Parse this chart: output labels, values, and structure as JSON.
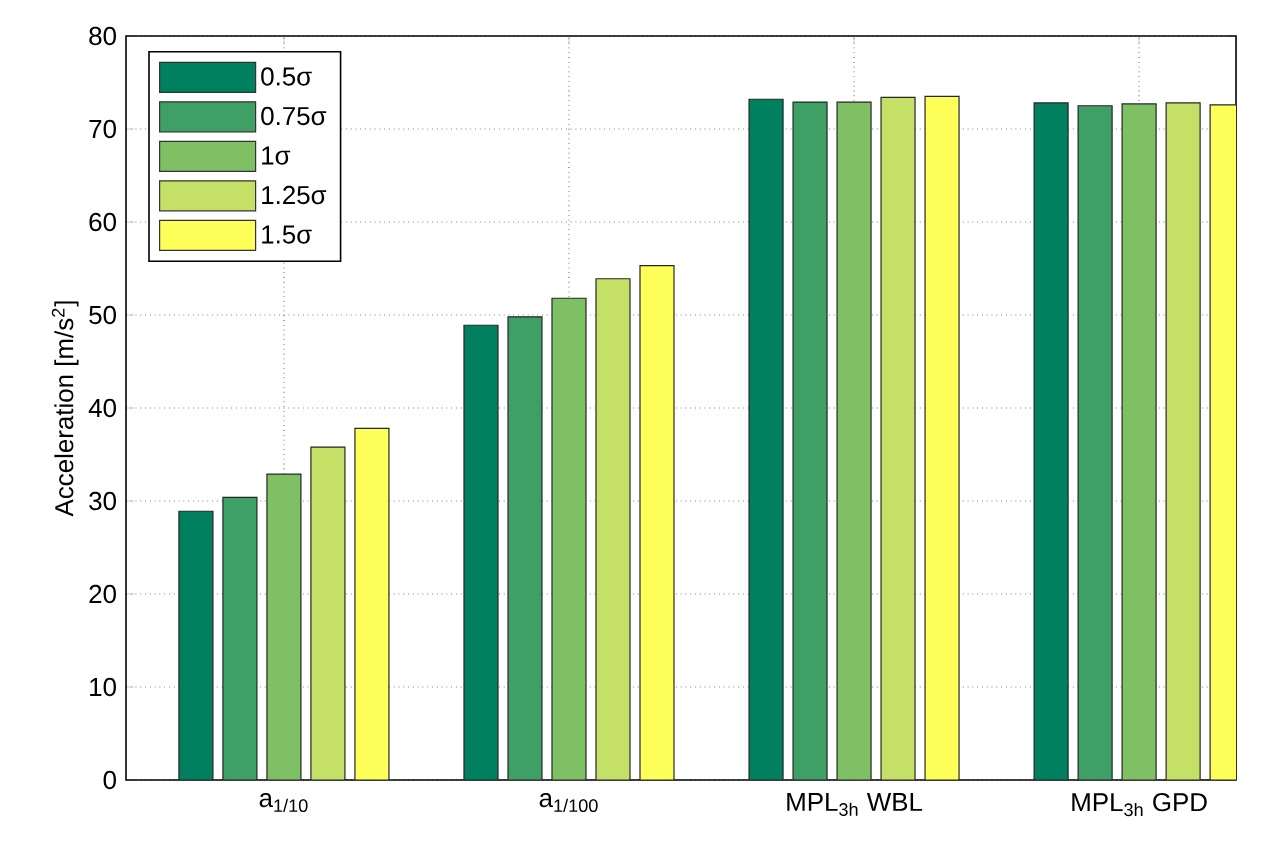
{
  "chart_data": {
    "type": "bar",
    "ylabel": "Acceleration [m/s$^{2}$]",
    "categories": [
      "a$_{1/10}$",
      "a$_{1/100}$",
      "MPL$_{3h}$ WBL",
      "MPL$_{3h}$ GPD"
    ],
    "series": [
      {
        "name": "0.5σ",
        "color": "#00805f",
        "values": [
          28.9,
          48.9,
          73.2,
          72.8
        ]
      },
      {
        "name": "0.75σ",
        "color": "#3fa066",
        "values": [
          30.4,
          49.8,
          72.9,
          72.5
        ]
      },
      {
        "name": "1σ",
        "color": "#80c064",
        "values": [
          32.9,
          51.8,
          72.9,
          72.7
        ]
      },
      {
        "name": "1.25σ",
        "color": "#c4e066",
        "values": [
          35.8,
          53.9,
          73.4,
          72.8
        ]
      },
      {
        "name": "1.5σ",
        "color": "#ffff5a",
        "values": [
          37.8,
          55.3,
          73.5,
          72.6
        ]
      }
    ],
    "ylim": [
      0,
      80
    ],
    "yticks": [
      0,
      10,
      20,
      30,
      40,
      50,
      60,
      70,
      80
    ],
    "grid": true,
    "legend": "top left"
  }
}
